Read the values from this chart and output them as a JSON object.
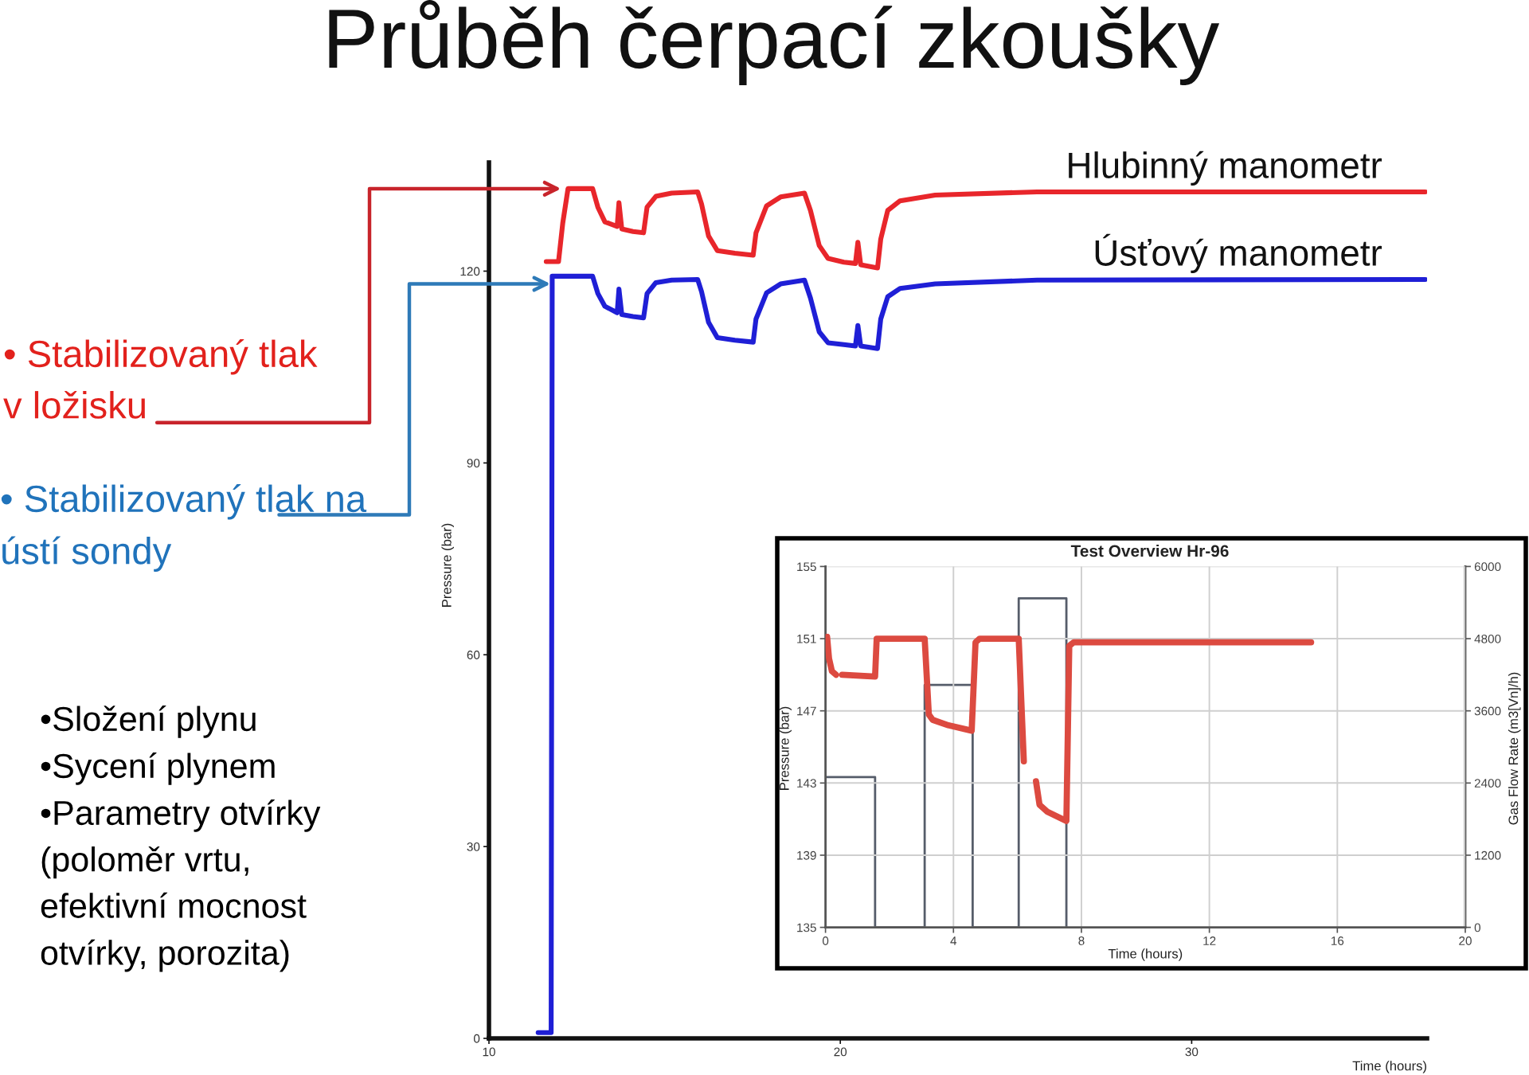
{
  "chart_data": [
    {
      "type": "line",
      "title": "Průběh čerpací zkoušky",
      "xlabel": "Time (hours)",
      "ylabel": "Pressure (bar)",
      "xlim": [
        10,
        36.7
      ],
      "xticks": [
        10,
        20,
        30
      ],
      "ylim": [
        0,
        137
      ],
      "yticks": [
        0,
        30,
        60,
        90,
        120
      ],
      "series": [
        {
          "name": "Hlubinný manometr",
          "color": "#e8262b",
          "x": [
            11.63,
            11.98,
            12.1,
            12.25,
            12.95,
            13.1,
            13.3,
            13.65,
            13.7,
            13.78,
            14.1,
            14.4,
            14.5,
            14.75,
            15.2,
            15.94,
            16.05,
            16.25,
            16.5,
            17.0,
            17.52,
            17.6,
            17.9,
            18.3,
            18.98,
            19.15,
            19.4,
            19.65,
            20.1,
            20.43,
            20.5,
            20.58,
            21.06,
            21.15,
            21.35,
            21.7,
            22.7,
            25.6,
            36.65
          ],
          "values": [
            121.5,
            121.5,
            127.5,
            132.9,
            132.9,
            130.0,
            127.7,
            127.0,
            130.7,
            126.6,
            126.2,
            126.0,
            130.0,
            131.7,
            132.2,
            132.4,
            130.5,
            125.5,
            123.2,
            122.8,
            122.5,
            126.0,
            130.2,
            131.6,
            132.2,
            129.5,
            124.0,
            122.0,
            121.4,
            121.2,
            124.5,
            121.0,
            120.5,
            125.0,
            129.5,
            131.0,
            131.9,
            132.4,
            132.4
          ]
        },
        {
          "name": "Úsťový manometr",
          "color": "#1f1fd6",
          "x": [
            11.4,
            11.77,
            11.8,
            12.95,
            13.1,
            13.3,
            13.65,
            13.7,
            13.78,
            14.1,
            14.4,
            14.5,
            14.75,
            15.2,
            15.94,
            16.05,
            16.25,
            16.5,
            17.0,
            17.52,
            17.6,
            17.9,
            18.3,
            18.98,
            19.15,
            19.4,
            19.65,
            20.1,
            20.43,
            20.5,
            20.58,
            21.06,
            21.15,
            21.35,
            21.7,
            22.7,
            25.6,
            36.65
          ],
          "values": [
            0.9,
            0.9,
            119.2,
            119.2,
            116.5,
            114.5,
            113.5,
            117.2,
            113.2,
            112.9,
            112.7,
            116.5,
            118.2,
            118.6,
            118.7,
            116.8,
            112.0,
            109.6,
            109.2,
            108.9,
            112.5,
            116.6,
            118.0,
            118.6,
            115.8,
            110.5,
            108.8,
            108.5,
            108.3,
            111.5,
            108.3,
            107.9,
            112.5,
            116.0,
            117.3,
            118.0,
            118.6,
            118.7
          ]
        }
      ],
      "annotations": [
        {
          "text": "• Stabilizovaný tlak\nv ložisku",
          "x": 12.05,
          "y": 132.9
        },
        {
          "text": "• Stabilizovaný tlak na\nústí sondy",
          "x": 11.75,
          "y": 118.0
        },
        "•Složení plynu\n•Sycení plynem\n•Parametry otvírky\n(poloměr vrtu,\nefektivní mocnost\notvírky, porozita)"
      ]
    },
    {
      "type": "line",
      "title": "Test Overview Hr-96",
      "xlabel": "Time (hours)",
      "ylabel": "Pressure (bar)",
      "y2label": "Gas Flow Rate (m3[Vn]/h)",
      "xlim": [
        0,
        20
      ],
      "xticks": [
        0,
        4,
        8,
        12,
        16,
        20
      ],
      "ylim": [
        135,
        155
      ],
      "yticks": [
        135,
        139,
        143,
        147,
        151,
        155
      ],
      "y2lim": [
        0,
        6000
      ],
      "y2ticks": [
        0,
        1200,
        2400,
        3600,
        4800,
        6000
      ],
      "grid": true,
      "series": [
        {
          "color": "#dc4a40",
          "x": [
            0.05,
            0.11,
            0.2,
            0.33,
            0.42,
            0.52,
            1.55,
            1.6,
            3.1,
            3.23,
            3.35,
            3.84,
            4.57,
            4.69,
            4.82,
            6.04,
            6.2,
            6.4,
            6.58,
            6.69,
            6.94,
            7.53,
            7.62,
            7.76,
            15.18
          ],
          "values": [
            151.1,
            149.9,
            149.2,
            149.0,
            null,
            149.0,
            148.9,
            151.0,
            151.0,
            146.8,
            146.5,
            146.2,
            145.9,
            150.8,
            151.0,
            151.0,
            144.2,
            null,
            143.1,
            141.8,
            141.4,
            140.9,
            150.6,
            150.8,
            150.8
          ]
        },
        {
          "type": "step",
          "axis": "y2",
          "color": "#565d6a",
          "x": [
            0,
            1.55,
            3.1,
            4.6,
            6.04,
            7.53
          ],
          "values": [
            2500,
            0,
            4030,
            0,
            5470,
            0
          ]
        }
      ]
    }
  ]
}
